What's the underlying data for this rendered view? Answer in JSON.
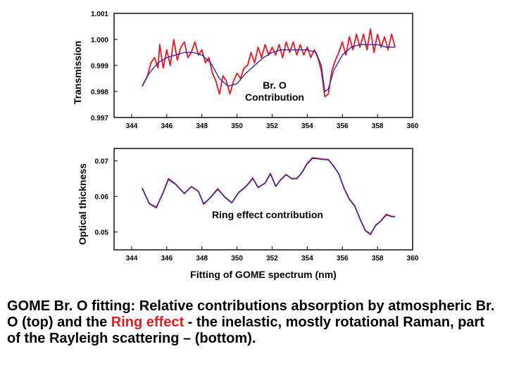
{
  "caption": {
    "part1": "GOME Br. O fitting: Relative contributions absorption by atmospheric Br. O (top) and the ",
    "highlight": "Ring effect",
    "part2": " - the inelastic, mostly rotational Raman, part of the Rayleigh scattering – (bottom)."
  },
  "colors": {
    "measured": "#e8141e",
    "fit": "#2a2aa8",
    "highlight": "#e02020"
  },
  "chart_data": [
    {
      "type": "line",
      "title": "",
      "xlabel": "",
      "ylabel": "Transmission",
      "xlim": [
        343,
        360
      ],
      "ylim": [
        0.997,
        1.001
      ],
      "xticks": [
        344,
        346,
        348,
        350,
        352,
        354,
        356,
        358,
        360
      ],
      "xtick_labels": [
        "344",
        "346",
        "348",
        "350",
        "352",
        "354",
        "356",
        "358",
        "360"
      ],
      "yticks": [
        0.997,
        0.998,
        0.999,
        1.0,
        1.001
      ],
      "ytick_labels": [
        "0.997",
        "0.998",
        "0.999",
        "1.000",
        "1.001"
      ],
      "annotation": [
        "Br. O",
        "Contribution"
      ],
      "grid": false,
      "series": [
        {
          "role": "measured",
          "x": [
            344.6,
            344.9,
            345.1,
            345.3,
            345.5,
            345.6,
            345.8,
            346.0,
            346.2,
            346.4,
            346.6,
            346.8,
            347.0,
            347.2,
            347.4,
            347.6,
            347.8,
            348.0,
            348.2,
            348.4,
            348.6,
            348.8,
            349.0,
            349.2,
            349.4,
            349.6,
            349.8,
            350.0,
            350.2,
            350.4,
            350.6,
            350.8,
            351.0,
            351.2,
            351.4,
            351.6,
            351.8,
            352.0,
            352.2,
            352.4,
            352.6,
            352.8,
            353.0,
            353.2,
            353.4,
            353.6,
            353.8,
            354.0,
            354.2,
            354.4,
            354.6,
            354.8,
            355.0,
            355.2,
            355.4,
            355.6,
            355.8,
            356.0,
            356.2,
            356.4,
            356.6,
            356.8,
            357.0,
            357.2,
            357.4,
            357.6,
            357.8,
            358.0,
            358.2,
            358.4,
            358.6,
            358.8,
            359.0
          ],
          "y": [
            0.9982,
            0.9986,
            0.9991,
            0.9993,
            0.9989,
            0.9998,
            0.9989,
            0.9996,
            0.999,
            1.0,
            0.9992,
            0.9997,
            0.9999,
            0.9993,
            0.9995,
            0.9999,
            0.9994,
            0.9996,
            0.9991,
            0.9993,
            0.9987,
            0.9984,
            0.9979,
            0.9986,
            0.9984,
            0.9979,
            0.9984,
            0.9987,
            0.9985,
            0.9989,
            0.999,
            0.9995,
            0.9991,
            0.9997,
            0.9993,
            0.9998,
            0.9994,
            0.9997,
            0.9994,
            0.9998,
            0.9993,
            0.9999,
            0.9995,
            0.9999,
            0.9994,
            0.9998,
            0.9994,
            0.9997,
            0.9993,
            0.9996,
            0.9993,
            0.9988,
            0.9978,
            0.9979,
            0.9988,
            0.9992,
            0.9995,
            0.9999,
            0.9994,
            1.0001,
            0.9996,
            1.0002,
            0.9997,
            1.0002,
            0.9996,
            1.0004,
            0.9995,
            1.0002,
            0.9997,
            1.0001,
            0.9996,
            1.0002,
            0.9997
          ]
        },
        {
          "role": "fit",
          "x": [
            344.6,
            345.0,
            345.5,
            346.0,
            346.5,
            347.0,
            347.5,
            348.0,
            348.5,
            349.0,
            349.5,
            350.0,
            350.5,
            351.0,
            351.5,
            352.0,
            352.5,
            353.0,
            353.5,
            354.0,
            354.5,
            354.8,
            355.0,
            355.2,
            355.5,
            356.0,
            356.5,
            357.0,
            357.5,
            358.0,
            358.5,
            359.0
          ],
          "y": [
            0.9982,
            0.9987,
            0.9991,
            0.9993,
            0.9994,
            0.9995,
            0.9995,
            0.9994,
            0.9991,
            0.9985,
            0.9982,
            0.9983,
            0.9987,
            0.999,
            0.9993,
            0.9995,
            0.9996,
            0.9996,
            0.9996,
            0.9996,
            0.9995,
            0.999,
            0.998,
            0.9981,
            0.9988,
            0.9994,
            0.9997,
            0.9998,
            0.9998,
            0.9998,
            0.9997,
            0.9997
          ]
        }
      ]
    },
    {
      "type": "line",
      "title": "",
      "xlabel": "Fitting of GOME spectrum (nm)",
      "ylabel": "Optical thickness",
      "xlim": [
        343,
        360
      ],
      "ylim": [
        0.045,
        0.0735
      ],
      "xticks": [
        344,
        346,
        348,
        350,
        352,
        354,
        356,
        358,
        360
      ],
      "xtick_labels": [
        "344",
        "346",
        "348",
        "350",
        "352",
        "354",
        "356",
        "358",
        "360"
      ],
      "yticks": [
        0.05,
        0.06,
        0.07
      ],
      "ytick_labels": [
        "0.05",
        "0.06",
        "0.07"
      ],
      "annotation": [
        "Ring effect contribution"
      ],
      "grid": false,
      "series": [
        {
          "role": "measured",
          "x": [
            344.6,
            345.0,
            345.4,
            345.8,
            346.1,
            346.5,
            347.0,
            347.4,
            347.8,
            348.1,
            348.5,
            348.9,
            349.3,
            349.7,
            350.1,
            350.5,
            350.9,
            351.2,
            351.6,
            351.9,
            352.2,
            352.5,
            352.8,
            353.1,
            353.4,
            353.7,
            354.0,
            354.3,
            354.6,
            354.9,
            355.2,
            355.5,
            355.8,
            356.1,
            356.4,
            356.7,
            357.0,
            357.3,
            357.6,
            357.9,
            358.2,
            358.5,
            358.8,
            359.0
          ],
          "y": [
            0.0624,
            0.058,
            0.0568,
            0.0612,
            0.065,
            0.0635,
            0.0608,
            0.0628,
            0.0615,
            0.0578,
            0.0598,
            0.0622,
            0.0598,
            0.0582,
            0.0612,
            0.0628,
            0.0652,
            0.0625,
            0.0638,
            0.0665,
            0.0628,
            0.0648,
            0.0662,
            0.065,
            0.065,
            0.0668,
            0.0694,
            0.0709,
            0.0707,
            0.0705,
            0.0704,
            0.0685,
            0.0664,
            0.0622,
            0.0592,
            0.0573,
            0.0537,
            0.0504,
            0.0493,
            0.0519,
            0.0532,
            0.055,
            0.0544,
            0.0544
          ]
        },
        {
          "role": "fit",
          "x": [
            344.6,
            345.0,
            345.4,
            345.8,
            346.1,
            346.5,
            347.0,
            347.4,
            347.8,
            348.1,
            348.5,
            348.9,
            349.3,
            349.7,
            350.1,
            350.5,
            350.9,
            351.2,
            351.6,
            351.9,
            352.2,
            352.5,
            352.8,
            353.1,
            353.4,
            353.7,
            354.0,
            354.3,
            354.6,
            354.9,
            355.2,
            355.5,
            355.8,
            356.1,
            356.4,
            356.7,
            357.0,
            357.3,
            357.6,
            357.9,
            358.2,
            358.5,
            358.8,
            359.0
          ],
          "y": [
            0.0623,
            0.0581,
            0.057,
            0.0611,
            0.0648,
            0.0634,
            0.0609,
            0.0627,
            0.0614,
            0.058,
            0.0597,
            0.062,
            0.0599,
            0.0583,
            0.0611,
            0.0627,
            0.065,
            0.0626,
            0.0637,
            0.0663,
            0.0629,
            0.0647,
            0.0661,
            0.0651,
            0.0651,
            0.0667,
            0.0692,
            0.0707,
            0.0706,
            0.0704,
            0.0703,
            0.0686,
            0.0663,
            0.0623,
            0.0593,
            0.0574,
            0.0538,
            0.0505,
            0.0495,
            0.0518,
            0.0531,
            0.0548,
            0.0543,
            0.0543
          ]
        }
      ]
    }
  ]
}
